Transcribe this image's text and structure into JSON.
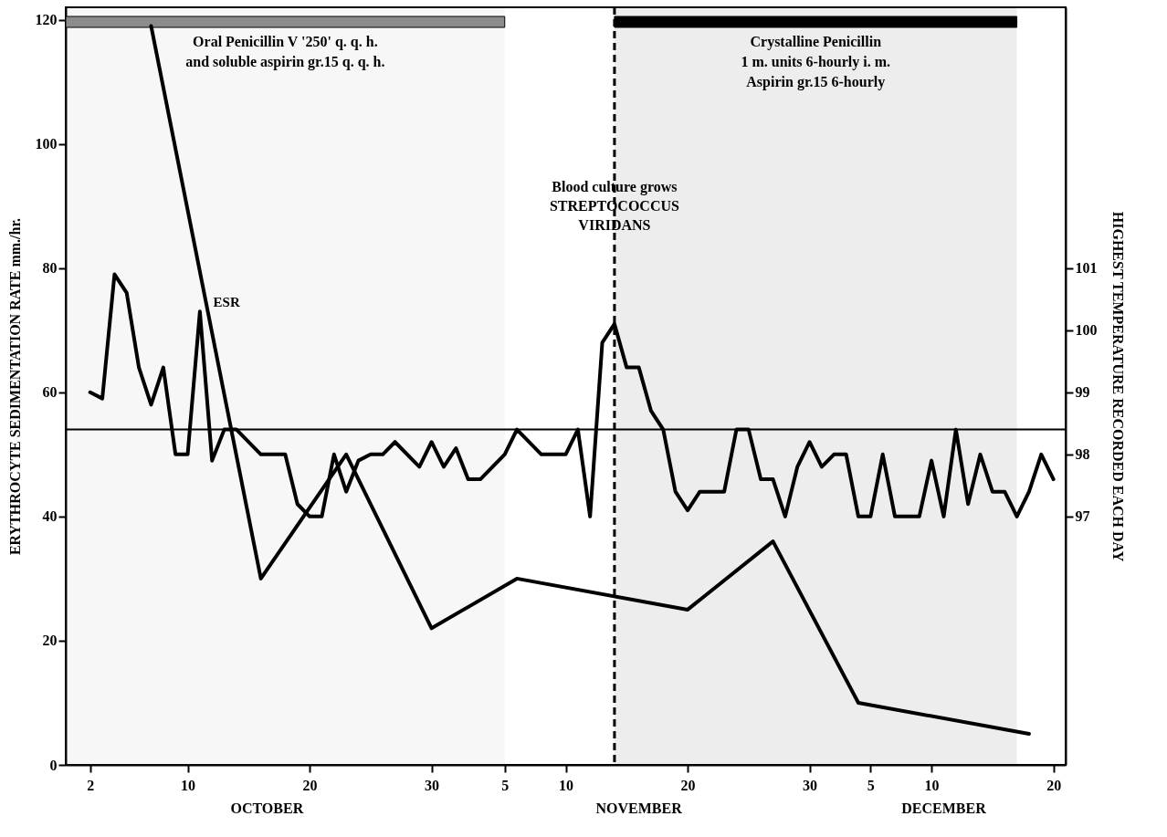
{
  "chart_data": {
    "type": "line",
    "ylabel": "ERYTHROCYTE  SEDIMENTATION  RATE  mm./hr.",
    "y2label": "HIGHEST TEMPERATURE RECORDED EACH DAY",
    "xlim": [
      "--09-30",
      "--12-21"
    ],
    "xticks": [
      {
        "value": "--10-02",
        "label": "2"
      },
      {
        "value": "--10-10",
        "label": "10"
      },
      {
        "value": "--10-20",
        "label": "20"
      },
      {
        "value": "--10-30",
        "label": "30"
      },
      {
        "value": "--11-05",
        "label": "5"
      },
      {
        "value": "--11-10",
        "label": "10"
      },
      {
        "value": "--11-20",
        "label": "20"
      },
      {
        "value": "--11-30",
        "label": "30"
      },
      {
        "value": "--12-05",
        "label": "5"
      },
      {
        "value": "--12-10",
        "label": "10"
      },
      {
        "value": "--12-20",
        "label": "20"
      }
    ],
    "ylim": [
      0,
      122
    ],
    "yticks": [
      0,
      20,
      40,
      60,
      80,
      100,
      120
    ],
    "y2lim": [
      93,
      105.2
    ],
    "y2ticks": [
      97,
      98,
      99,
      100,
      101
    ],
    "series": [
      {
        "name": "ESR",
        "color": "#000000",
        "x": [
          "--10-07",
          "--10-16",
          "--10-23",
          "--10-30",
          "--11-06",
          "--11-20",
          "--11-27",
          "--12-04",
          "--12-18"
        ],
        "values": [
          119,
          30,
          50,
          22,
          30,
          25,
          36,
          10,
          5
        ]
      },
      {
        "color": "#000000",
        "axis": "y2",
        "x": [
          "--10-02",
          "--10-03",
          "--10-04",
          "--10-05",
          "--10-06",
          "--10-07",
          "--10-08",
          "--10-09",
          "--10-10",
          "--10-11",
          "--10-12",
          "--10-13",
          "--10-14",
          "--10-16",
          "--10-18",
          "--10-19",
          "--10-20",
          "--10-21",
          "--10-22",
          "--10-23",
          "--10-24",
          "--10-25",
          "--10-26",
          "--10-27",
          "--10-29",
          "--10-30",
          "--10-31",
          "--11-01",
          "--11-02",
          "--11-03",
          "--11-05",
          "--11-06",
          "--11-08",
          "--11-10",
          "--11-11",
          "--11-12",
          "--11-13",
          "--11-14",
          "--11-15",
          "--11-16",
          "--11-17",
          "--11-18",
          "--11-19",
          "--11-20",
          "--11-21",
          "--11-23",
          "--11-24",
          "--11-25",
          "--11-26",
          "--11-27",
          "--11-28",
          "--11-29",
          "--11-30",
          "--12-01",
          "--12-02",
          "--12-03",
          "--12-04",
          "--12-05",
          "--12-06",
          "--12-07",
          "--12-09",
          "--12-10",
          "--12-11",
          "--12-12",
          "--12-13",
          "--12-14",
          "--12-15",
          "--12-16",
          "--12-17",
          "--12-18",
          "--12-19",
          "--12-20"
        ],
        "values": [
          99.0,
          98.9,
          100.9,
          100.6,
          99.4,
          98.8,
          99.4,
          98.0,
          98.0,
          100.3,
          97.9,
          98.4,
          98.4,
          98.0,
          98.0,
          97.2,
          97.0,
          97.0,
          98.0,
          97.4,
          97.9,
          98.0,
          98.0,
          98.2,
          97.8,
          98.2,
          97.8,
          98.1,
          97.6,
          97.6,
          98.0,
          98.4,
          98.0,
          98.0,
          98.4,
          97.0,
          99.8,
          100.1,
          99.4,
          99.4,
          98.7,
          98.4,
          97.4,
          97.1,
          97.4,
          97.4,
          98.4,
          98.4,
          97.6,
          97.6,
          97.0,
          97.8,
          98.2,
          97.8,
          98.0,
          98.0,
          97.0,
          97.0,
          98.0,
          97.0,
          97.0,
          97.9,
          97.0,
          98.4,
          97.2,
          98.0,
          97.4,
          97.4,
          97.0,
          97.4,
          98.0,
          97.6
        ]
      }
    ],
    "ref_lines": [
      {
        "axis": "y2",
        "value": 98.4,
        "color": "#000000"
      },
      {
        "axis": "x",
        "value": "--11-14",
        "color": "#000000",
        "line_style": "dashed"
      }
    ],
    "bands": [
      {
        "axis": "x",
        "from": "--09-30",
        "to": "--11-05",
        "color": "#8c8c8c",
        "label": "Oral  Penicillin V '250'  q. q. h.\nand  soluble aspirin gr.15 q. q. h."
      },
      {
        "axis": "x",
        "from": "--11-14",
        "to": "--12-17",
        "color": "#000000",
        "label": "Crystalline Penicillin\n1 m. units 6-hourly i. m.\nAspirin gr.15  6-hourly"
      }
    ],
    "annotations": [
      {
        "text": "Blood culture grows\nSTREPTOCOCCUS\nVIRIDANS",
        "x": "--11-14",
        "y": 93
      },
      "OCTOBER",
      "NOVEMBER",
      "DECEMBER"
    ]
  }
}
